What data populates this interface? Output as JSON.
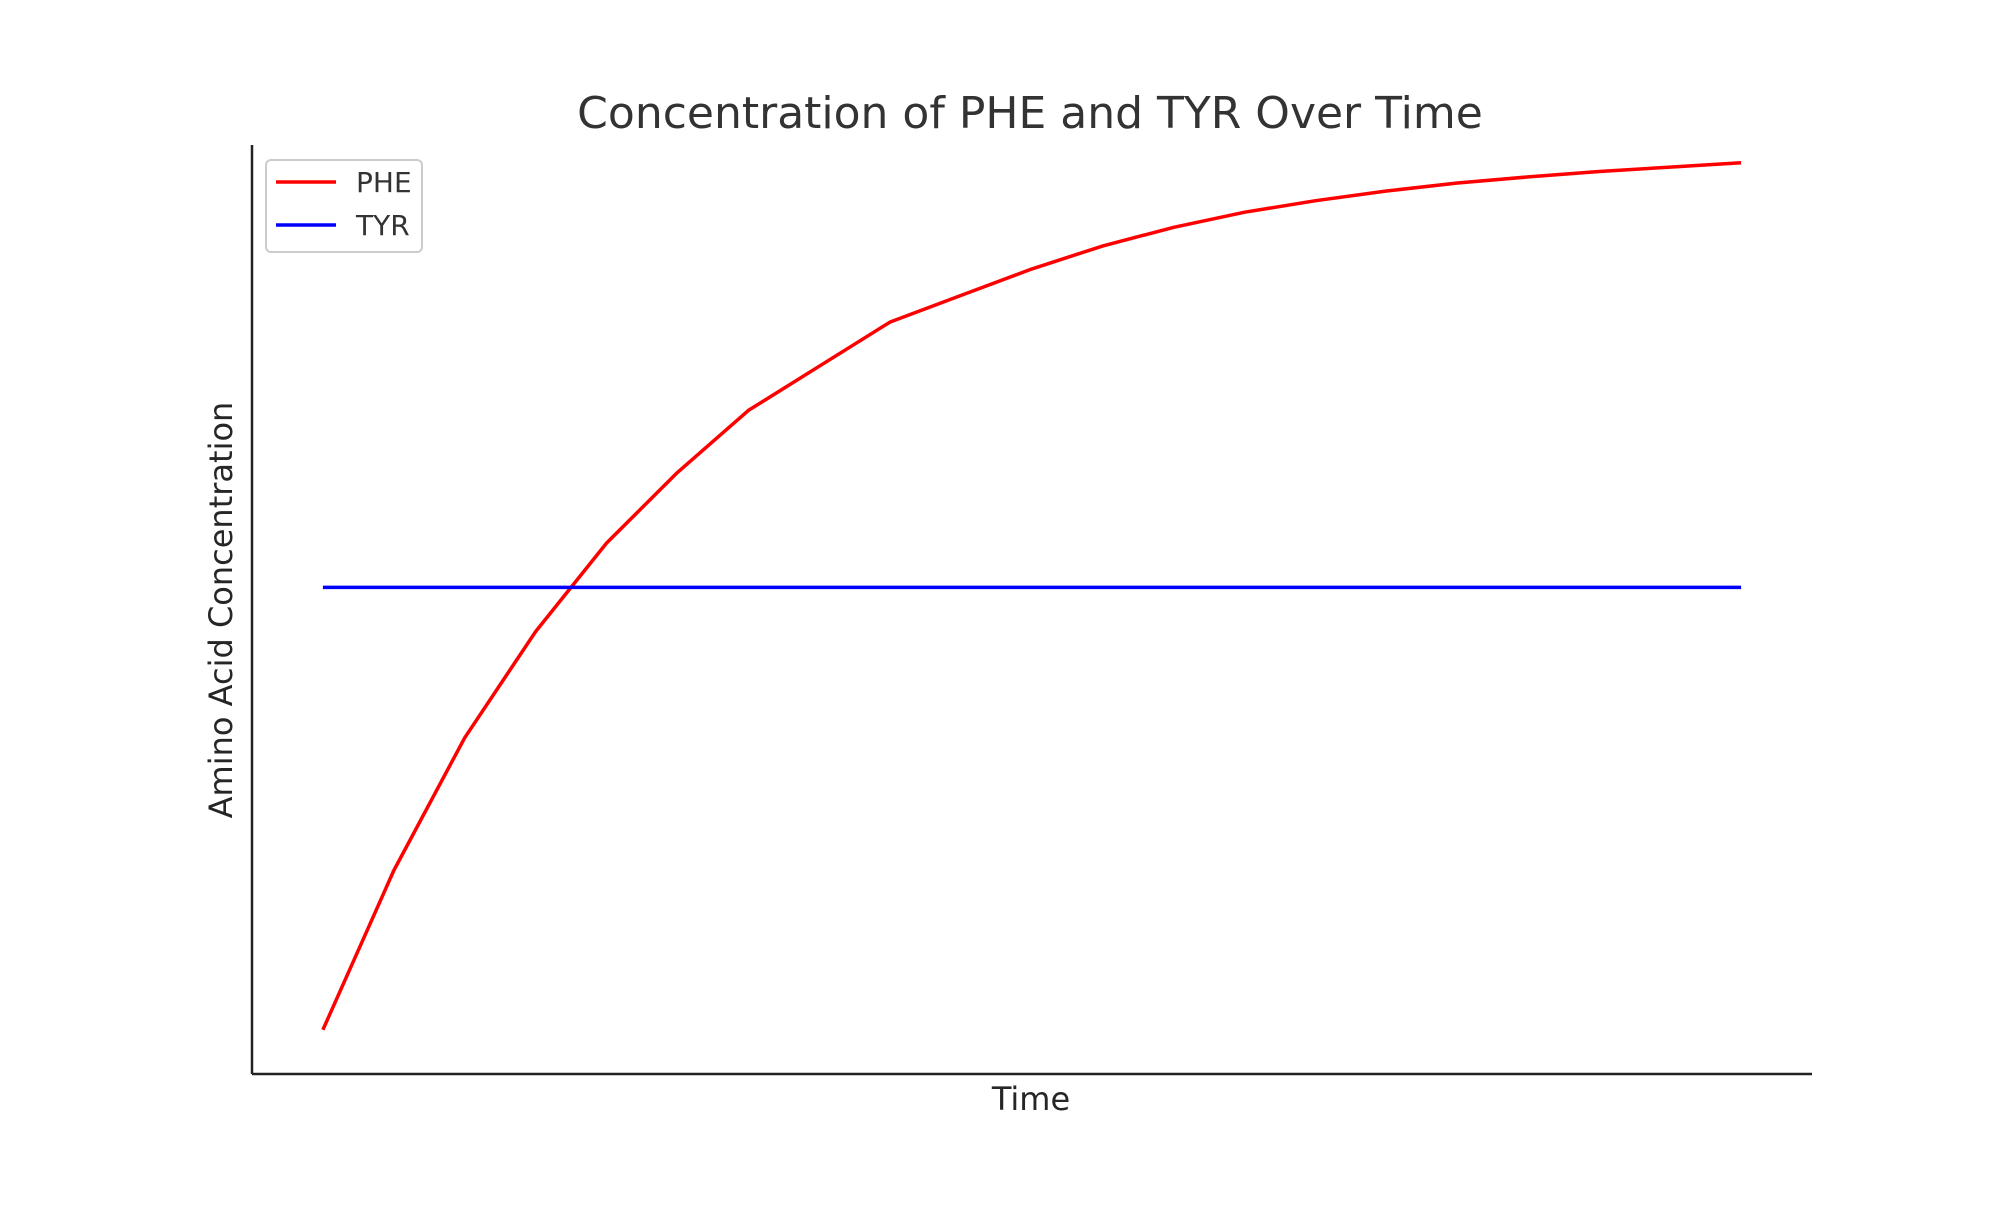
{
  "chart_data": {
    "type": "line",
    "title": "Concentration of PHE and TYR Over Time",
    "xlabel": "Time",
    "ylabel": "Amino Acid Concentration",
    "grid": false,
    "legend_position": "top-left",
    "xlim": [
      -0.5,
      10.5
    ],
    "ylim": [
      -0.05,
      1.0
    ],
    "series": [
      {
        "name": "PHE",
        "color": "#ff0000",
        "x": [
          0,
          0.5,
          1,
          1.5,
          2,
          2.5,
          3,
          3.5,
          4,
          4.5,
          5,
          5.5,
          6,
          6.5,
          7,
          7.5,
          8,
          8.5,
          9,
          9.5,
          10
        ],
        "y": [
          0.0,
          0.18,
          0.33,
          0.45,
          0.55,
          0.63,
          0.7,
          0.75,
          0.8,
          0.83,
          0.86,
          0.886,
          0.907,
          0.924,
          0.937,
          0.948,
          0.957,
          0.964,
          0.97,
          0.975,
          0.98
        ]
      },
      {
        "name": "TYR",
        "color": "#0000ff",
        "x": [
          0,
          10
        ],
        "y": [
          0.5,
          0.5
        ]
      }
    ]
  }
}
